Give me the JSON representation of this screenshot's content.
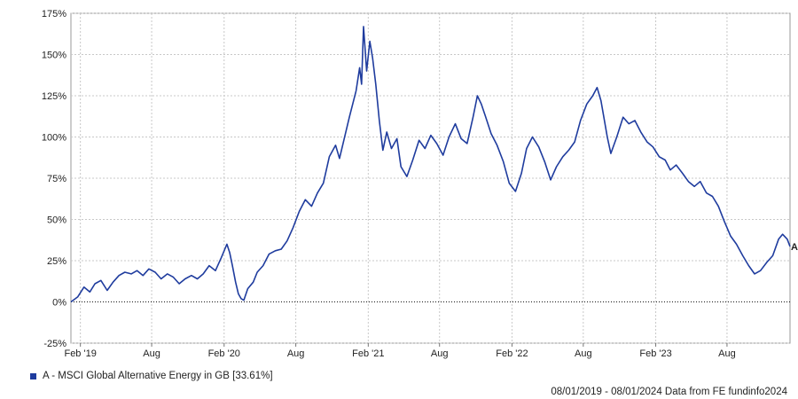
{
  "chart_data": {
    "type": "line",
    "title": "",
    "xlabel": "",
    "ylabel": "",
    "ylim": [
      -25,
      175
    ],
    "y_ticks": [
      "175%",
      "150%",
      "125%",
      "100%",
      "75%",
      "50%",
      "25%",
      "0%",
      "-25%"
    ],
    "y_tick_values": [
      175,
      150,
      125,
      100,
      75,
      50,
      25,
      0,
      -25
    ],
    "x_ticks": [
      {
        "label": "Feb '19",
        "date": "2019-02-01"
      },
      {
        "label": "Aug",
        "date": "2019-08-01"
      },
      {
        "label": "Feb '20",
        "date": "2020-02-01"
      },
      {
        "label": "Aug",
        "date": "2020-08-01"
      },
      {
        "label": "Feb '21",
        "date": "2021-02-01"
      },
      {
        "label": "Aug",
        "date": "2021-08-01"
      },
      {
        "label": "Feb '22",
        "date": "2022-02-01"
      },
      {
        "label": "Aug",
        "date": "2022-08-01"
      },
      {
        "label": "Feb '23",
        "date": "2023-02-01"
      },
      {
        "label": "Aug",
        "date": "2023-08-01"
      }
    ],
    "x_range": [
      "2019-01-08",
      "2024-01-08"
    ],
    "grid": true,
    "zero_line": true,
    "series": [
      {
        "name": "A",
        "color": "#1f3c9e",
        "points": [
          [
            "2019-01-08",
            0
          ],
          [
            "2019-01-25",
            3
          ],
          [
            "2019-02-10",
            9
          ],
          [
            "2019-02-25",
            6
          ],
          [
            "2019-03-10",
            11
          ],
          [
            "2019-03-25",
            13
          ],
          [
            "2019-04-10",
            7
          ],
          [
            "2019-04-25",
            12
          ],
          [
            "2019-05-10",
            16
          ],
          [
            "2019-05-25",
            18
          ],
          [
            "2019-06-10",
            17
          ],
          [
            "2019-06-25",
            19
          ],
          [
            "2019-07-10",
            16
          ],
          [
            "2019-07-25",
            20
          ],
          [
            "2019-08-10",
            18
          ],
          [
            "2019-08-25",
            14
          ],
          [
            "2019-09-10",
            17
          ],
          [
            "2019-09-25",
            15
          ],
          [
            "2019-10-10",
            11
          ],
          [
            "2019-10-25",
            14
          ],
          [
            "2019-11-10",
            16
          ],
          [
            "2019-11-25",
            14
          ],
          [
            "2019-12-10",
            17
          ],
          [
            "2019-12-25",
            22
          ],
          [
            "2020-01-10",
            19
          ],
          [
            "2020-01-25",
            27
          ],
          [
            "2020-02-08",
            35
          ],
          [
            "2020-02-15",
            30
          ],
          [
            "2020-02-22",
            22
          ],
          [
            "2020-03-01",
            12
          ],
          [
            "2020-03-08",
            5
          ],
          [
            "2020-03-15",
            2
          ],
          [
            "2020-03-22",
            1
          ],
          [
            "2020-04-01",
            8
          ],
          [
            "2020-04-15",
            12
          ],
          [
            "2020-04-25",
            18
          ],
          [
            "2020-05-10",
            22
          ],
          [
            "2020-05-25",
            29
          ],
          [
            "2020-06-10",
            31
          ],
          [
            "2020-06-25",
            32
          ],
          [
            "2020-07-10",
            37
          ],
          [
            "2020-07-25",
            45
          ],
          [
            "2020-08-10",
            55
          ],
          [
            "2020-08-25",
            62
          ],
          [
            "2020-09-10",
            58
          ],
          [
            "2020-09-25",
            66
          ],
          [
            "2020-10-10",
            72
          ],
          [
            "2020-10-25",
            88
          ],
          [
            "2020-11-10",
            95
          ],
          [
            "2020-11-20",
            87
          ],
          [
            "2020-12-01",
            98
          ],
          [
            "2020-12-15",
            112
          ],
          [
            "2021-01-01",
            128
          ],
          [
            "2021-01-10",
            142
          ],
          [
            "2021-01-15",
            132
          ],
          [
            "2021-01-20",
            167
          ],
          [
            "2021-01-28",
            140
          ],
          [
            "2021-02-05",
            158
          ],
          [
            "2021-02-12",
            148
          ],
          [
            "2021-02-20",
            132
          ],
          [
            "2021-03-01",
            110
          ],
          [
            "2021-03-10",
            92
          ],
          [
            "2021-03-20",
            103
          ],
          [
            "2021-04-01",
            93
          ],
          [
            "2021-04-15",
            99
          ],
          [
            "2021-04-25",
            82
          ],
          [
            "2021-05-10",
            76
          ],
          [
            "2021-05-25",
            86
          ],
          [
            "2021-06-10",
            98
          ],
          [
            "2021-06-25",
            93
          ],
          [
            "2021-07-10",
            101
          ],
          [
            "2021-07-25",
            96
          ],
          [
            "2021-08-10",
            89
          ],
          [
            "2021-08-25",
            100
          ],
          [
            "2021-09-10",
            108
          ],
          [
            "2021-09-25",
            99
          ],
          [
            "2021-10-10",
            96
          ],
          [
            "2021-10-25",
            112
          ],
          [
            "2021-11-05",
            125
          ],
          [
            "2021-11-15",
            120
          ],
          [
            "2021-11-25",
            113
          ],
          [
            "2021-12-10",
            102
          ],
          [
            "2021-12-25",
            95
          ],
          [
            "2022-01-10",
            85
          ],
          [
            "2022-01-25",
            72
          ],
          [
            "2022-02-10",
            67
          ],
          [
            "2022-02-25",
            78
          ],
          [
            "2022-03-10",
            93
          ],
          [
            "2022-03-25",
            100
          ],
          [
            "2022-04-10",
            94
          ],
          [
            "2022-04-25",
            85
          ],
          [
            "2022-05-10",
            74
          ],
          [
            "2022-05-25",
            82
          ],
          [
            "2022-06-10",
            88
          ],
          [
            "2022-06-25",
            92
          ],
          [
            "2022-07-10",
            97
          ],
          [
            "2022-07-25",
            110
          ],
          [
            "2022-08-10",
            120
          ],
          [
            "2022-08-25",
            125
          ],
          [
            "2022-09-05",
            130
          ],
          [
            "2022-09-15",
            122
          ],
          [
            "2022-10-01",
            100
          ],
          [
            "2022-10-10",
            90
          ],
          [
            "2022-10-25",
            100
          ],
          [
            "2022-11-10",
            112
          ],
          [
            "2022-11-25",
            108
          ],
          [
            "2022-12-10",
            110
          ],
          [
            "2022-12-25",
            103
          ],
          [
            "2023-01-10",
            97
          ],
          [
            "2023-01-25",
            94
          ],
          [
            "2023-02-10",
            88
          ],
          [
            "2023-02-25",
            86
          ],
          [
            "2023-03-10",
            80
          ],
          [
            "2023-03-25",
            83
          ],
          [
            "2023-04-10",
            78
          ],
          [
            "2023-04-25",
            73
          ],
          [
            "2023-05-10",
            70
          ],
          [
            "2023-05-25",
            73
          ],
          [
            "2023-06-10",
            66
          ],
          [
            "2023-06-25",
            64
          ],
          [
            "2023-07-10",
            58
          ],
          [
            "2023-07-25",
            49
          ],
          [
            "2023-08-10",
            40
          ],
          [
            "2023-08-25",
            35
          ],
          [
            "2023-09-10",
            28
          ],
          [
            "2023-09-25",
            22
          ],
          [
            "2023-10-10",
            17
          ],
          [
            "2023-10-25",
            19
          ],
          [
            "2023-11-10",
            24
          ],
          [
            "2023-11-25",
            28
          ],
          [
            "2023-12-10",
            38
          ],
          [
            "2023-12-20",
            41
          ],
          [
            "2024-01-01",
            38
          ],
          [
            "2024-01-08",
            33.61
          ]
        ]
      }
    ]
  },
  "legend": {
    "label": "A - MSCI Global Alternative Energy in GB [33.61%]",
    "end_label": "A",
    "swatch_color": "#1f3c9e"
  },
  "credit": "08/01/2019 - 08/01/2024 Data from FE fundinfo2024"
}
